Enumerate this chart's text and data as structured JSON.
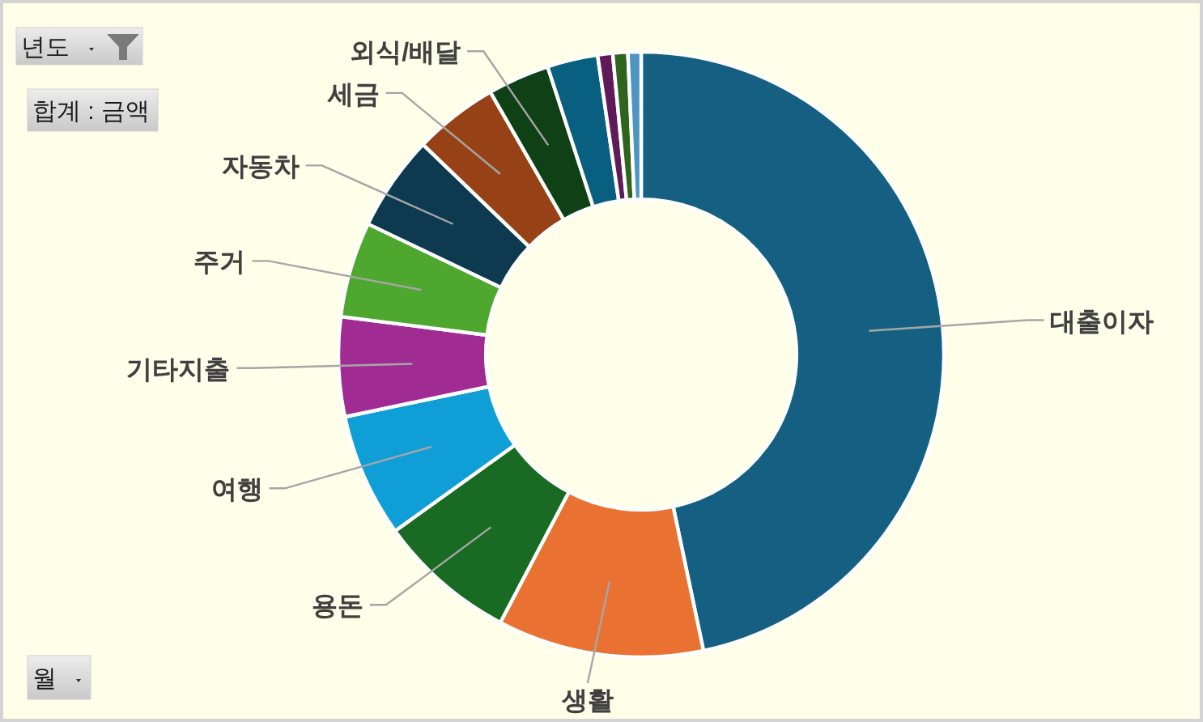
{
  "chart_data": {
    "type": "donut",
    "categories": [
      "대출이자",
      "생활",
      "용돈",
      "여행",
      "기타지출",
      "주거",
      "자동차",
      "세금",
      "외식/배달",
      null,
      null,
      null,
      null
    ],
    "values": [
      46.7,
      11.0,
      7.4,
      6.6,
      5.3,
      5.1,
      5.1,
      4.5,
      3.3,
      2.7,
      0.8,
      0.8,
      0.7
    ],
    "colors": [
      "#156082",
      "#e97132",
      "#196b24",
      "#0f9ed5",
      "#a02b93",
      "#4ea72e",
      "#0d3a4e",
      "#974216",
      "#0f4016",
      "#095f80",
      "#601a58",
      "#2f641c",
      "#4e95c2"
    ],
    "annotations": [
      "년도",
      "합계 : 금액",
      "월"
    ]
  }
}
